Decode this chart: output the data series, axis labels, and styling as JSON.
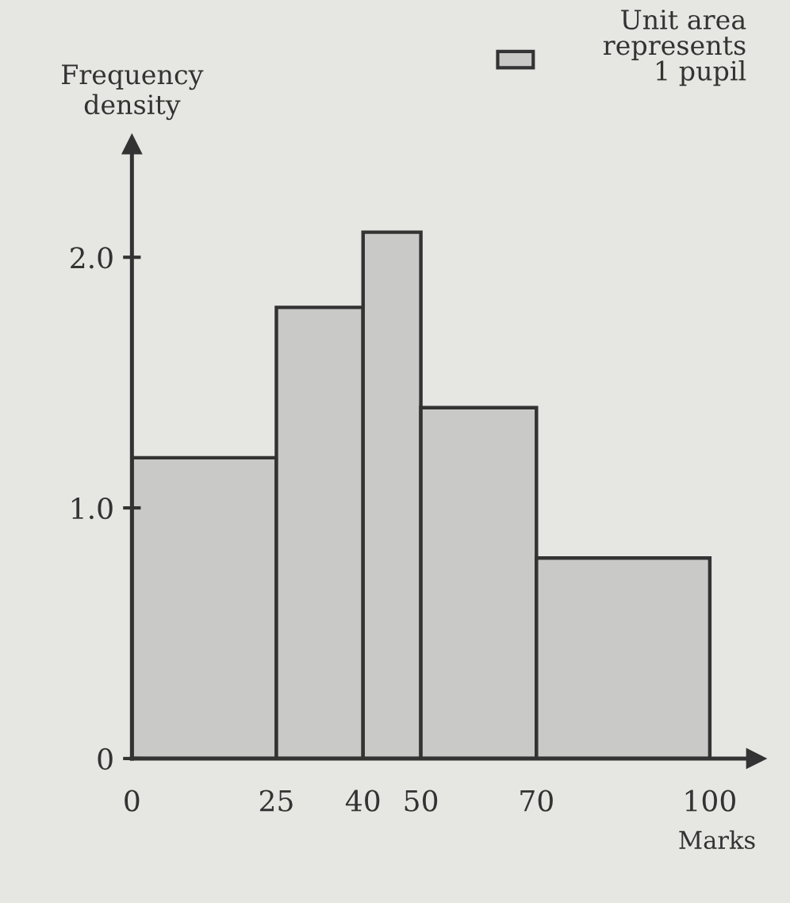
{
  "chart_data": {
    "type": "histogram",
    "xlabel": "Marks",
    "ylabel": "Frequency\ndensity",
    "bins": [
      0,
      25,
      40,
      50,
      70,
      100
    ],
    "values": [
      1.2,
      1.8,
      2.1,
      1.4,
      0.8
    ],
    "color": "#c9c9c7",
    "xlim": [
      0,
      108
    ],
    "ylim": [
      0,
      2.45
    ],
    "xticks": [
      0,
      25,
      40,
      50,
      70,
      100
    ],
    "yticks": [
      0,
      {
        "value": 1.0,
        "label": "1.0"
      },
      {
        "value": 2.0,
        "label": "2.0"
      }
    ],
    "annotations": [
      "Unit area\nrepresents\n1 pupil"
    ],
    "grid": false,
    "legend": false
  }
}
